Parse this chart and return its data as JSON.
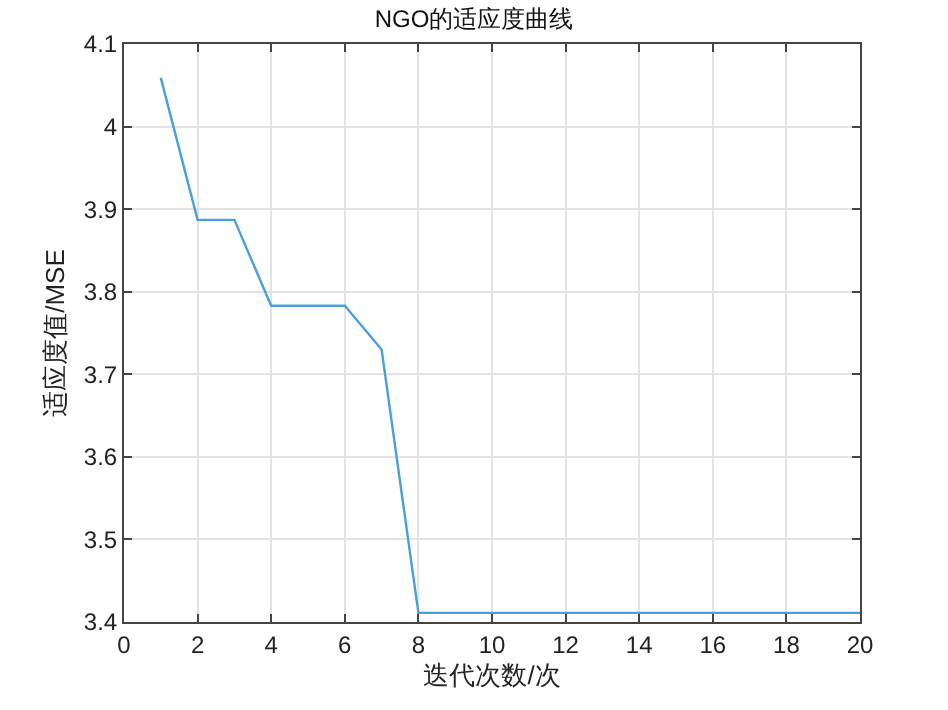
{
  "chart_data": {
    "type": "line",
    "title": "NGO的适应度曲线",
    "xlabel": "迭代次数/次",
    "ylabel": "适应度值/MSE",
    "x": [
      1,
      2,
      3,
      4,
      5,
      6,
      7,
      8,
      9,
      10,
      11,
      12,
      13,
      14,
      15,
      16,
      17,
      18,
      19,
      20
    ],
    "series": [
      {
        "color": "#4a9fd6",
        "values": [
          4.059,
          3.887,
          3.887,
          3.783,
          3.783,
          3.783,
          3.73,
          3.411,
          3.411,
          3.411,
          3.411,
          3.411,
          3.411,
          3.411,
          3.411,
          3.411,
          3.411,
          3.411,
          3.411,
          3.411
        ]
      }
    ],
    "xlim": [
      0,
      20
    ],
    "xticks": [
      0,
      2,
      4,
      6,
      8,
      10,
      12,
      14,
      16,
      18,
      20
    ],
    "ylim": [
      3.4,
      4.1
    ],
    "yticks": [
      3.4,
      3.5,
      3.6,
      3.7,
      3.8,
      3.9,
      4,
      4.1
    ],
    "grid": true,
    "marker": "none",
    "line_style": "solid"
  }
}
